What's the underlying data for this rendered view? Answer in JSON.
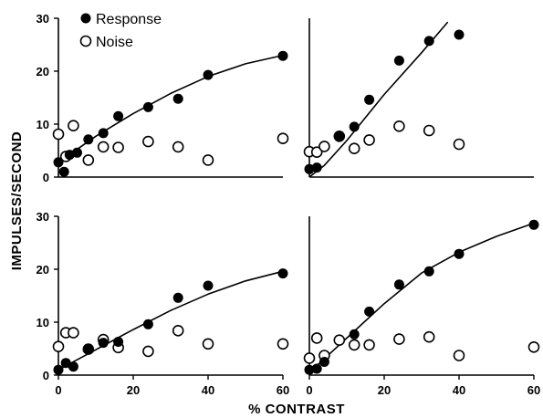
{
  "figure": {
    "ylabel": "IMPULSES/SECOND",
    "xlabel": "% CONTRAST",
    "legend": {
      "response_label": "Response",
      "noise_label": "Noise",
      "placement": "top-left panel, upper left"
    }
  },
  "chart_data": [
    {
      "type": "scatter",
      "panel": "top-left",
      "xlim": [
        0,
        60
      ],
      "ylim": [
        0,
        30
      ],
      "x_ticks": [],
      "y_ticks": [
        0,
        10,
        20,
        30
      ],
      "grid": false,
      "series": [
        {
          "name": "Response",
          "marker": "filled-circle",
          "points": [
            [
              0,
              2.8
            ],
            [
              1.5,
              1.0
            ],
            [
              3,
              4.2
            ],
            [
              5,
              4.6
            ],
            [
              8,
              7.1
            ],
            [
              12,
              8.3
            ],
            [
              16,
              11.5
            ],
            [
              24,
              13.2
            ],
            [
              32,
              14.8
            ],
            [
              40,
              19.3
            ],
            [
              60,
              22.9
            ]
          ]
        },
        {
          "name": "Noise",
          "marker": "open-circle",
          "points": [
            [
              0,
              8.1
            ],
            [
              2,
              3.9
            ],
            [
              4,
              9.7
            ],
            [
              8,
              3.2
            ],
            [
              12,
              5.7
            ],
            [
              16,
              5.6
            ],
            [
              24,
              6.7
            ],
            [
              32,
              5.7
            ],
            [
              40,
              3.2
            ],
            [
              60,
              7.3
            ]
          ]
        }
      ],
      "fit": {
        "series": "Response",
        "points": [
          [
            0,
            2.8
          ],
          [
            10,
            7.7
          ],
          [
            20,
            12.0
          ],
          [
            30,
            15.8
          ],
          [
            40,
            19.0
          ],
          [
            50,
            21.4
          ],
          [
            60,
            23.0
          ]
        ]
      }
    },
    {
      "type": "scatter",
      "panel": "top-right",
      "xlim": [
        0,
        60
      ],
      "ylim": [
        0,
        30
      ],
      "x_ticks": [],
      "y_ticks": [],
      "grid": false,
      "series": [
        {
          "name": "Response",
          "marker": "filled-circle",
          "points": [
            [
              0,
              1.5
            ],
            [
              2,
              1.8
            ],
            [
              8,
              7.7
            ],
            [
              12,
              9.5
            ],
            [
              16,
              14.6
            ],
            [
              24,
              22.0
            ],
            [
              32,
              25.7
            ],
            [
              40,
              26.9
            ]
          ]
        },
        {
          "name": "Noise",
          "marker": "open-circle",
          "points": [
            [
              0,
              4.8
            ],
            [
              2,
              4.7
            ],
            [
              4,
              5.8
            ],
            [
              8,
              7.7
            ],
            [
              12,
              5.4
            ],
            [
              16,
              7.0
            ],
            [
              24,
              9.6
            ],
            [
              32,
              8.8
            ],
            [
              40,
              6.2
            ]
          ]
        }
      ],
      "fit": {
        "series": "Response",
        "points": [
          [
            0,
            0
          ],
          [
            4,
            2.2
          ],
          [
            10,
            6.9
          ],
          [
            20,
            15.6
          ],
          [
            30,
            23.5
          ],
          [
            37,
            29.3
          ]
        ]
      }
    },
    {
      "type": "scatter",
      "panel": "bottom-left",
      "xlim": [
        0,
        60
      ],
      "ylim": [
        0,
        30
      ],
      "x_ticks": [
        0,
        20,
        40,
        60
      ],
      "y_ticks": [
        0,
        10,
        20,
        30
      ],
      "grid": false,
      "series": [
        {
          "name": "Response",
          "marker": "filled-circle",
          "points": [
            [
              0,
              1.0
            ],
            [
              2,
              2.3
            ],
            [
              4,
              1.6
            ],
            [
              8,
              5.0
            ],
            [
              12,
              6.1
            ],
            [
              16,
              6.3
            ],
            [
              24,
              9.6
            ],
            [
              32,
              14.6
            ],
            [
              40,
              16.9
            ],
            [
              60,
              19.2
            ]
          ]
        },
        {
          "name": "Noise",
          "marker": "open-circle",
          "points": [
            [
              0,
              5.4
            ],
            [
              2,
              8.0
            ],
            [
              4,
              8.0
            ],
            [
              8,
              4.9
            ],
            [
              12,
              6.7
            ],
            [
              16,
              5.2
            ],
            [
              24,
              4.5
            ],
            [
              32,
              8.4
            ],
            [
              40,
              5.9
            ],
            [
              60,
              5.9
            ]
          ]
        }
      ],
      "fit": {
        "series": "Response",
        "points": [
          [
            0,
            1.0
          ],
          [
            10,
            4.8
          ],
          [
            20,
            8.6
          ],
          [
            30,
            12.2
          ],
          [
            40,
            15.3
          ],
          [
            50,
            17.8
          ],
          [
            60,
            19.6
          ]
        ]
      }
    },
    {
      "type": "scatter",
      "panel": "bottom-right",
      "xlim": [
        0,
        60
      ],
      "ylim": [
        0,
        30
      ],
      "x_ticks": [
        0,
        20,
        40,
        60
      ],
      "y_ticks": [],
      "grid": false,
      "series": [
        {
          "name": "Response",
          "marker": "filled-circle",
          "points": [
            [
              0,
              1.0
            ],
            [
              2,
              1.2
            ],
            [
              4,
              2.5
            ],
            [
              12,
              7.7
            ],
            [
              16,
              12.0
            ],
            [
              24,
              17.1
            ],
            [
              32,
              19.6
            ],
            [
              40,
              22.9
            ],
            [
              60,
              28.4
            ]
          ]
        },
        {
          "name": "Noise",
          "marker": "open-circle",
          "points": [
            [
              0,
              3.2
            ],
            [
              2,
              7.0
            ],
            [
              4,
              3.7
            ],
            [
              8,
              6.6
            ],
            [
              12,
              5.7
            ],
            [
              16,
              5.7
            ],
            [
              24,
              6.8
            ],
            [
              32,
              7.2
            ],
            [
              40,
              3.7
            ],
            [
              60,
              5.3
            ]
          ]
        }
      ],
      "fit": {
        "series": "Response",
        "points": [
          [
            0,
            0.5
          ],
          [
            10,
            7.0
          ],
          [
            20,
            13.5
          ],
          [
            30,
            19.3
          ],
          [
            40,
            23.2
          ],
          [
            50,
            26.2
          ],
          [
            60,
            28.7
          ]
        ]
      }
    }
  ]
}
